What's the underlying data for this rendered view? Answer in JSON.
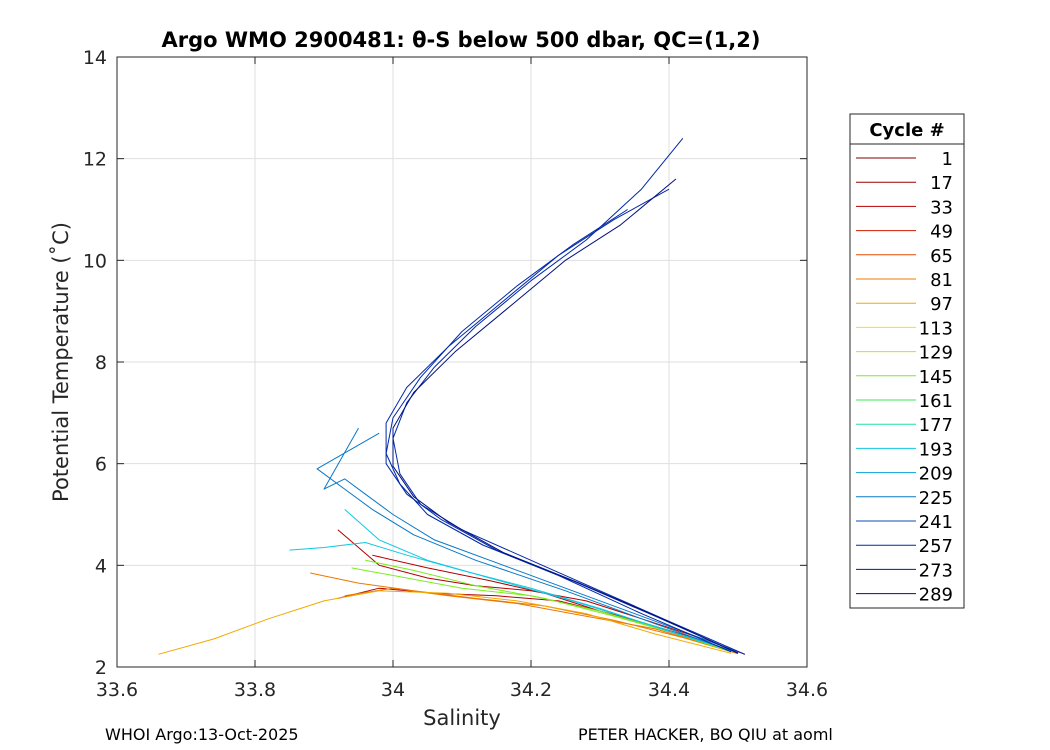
{
  "chart_data": {
    "type": "line",
    "title": "Argo WMO 2900481: θ-S below 500 dbar,  QC=(1,2)",
    "xlabel": "Salinity",
    "ylabel": "Potential Temperature (˚C)",
    "xlim": [
      33.6,
      34.6
    ],
    "ylim": [
      2,
      14
    ],
    "xticks": [
      "33.6",
      "33.8",
      "34",
      "34.2",
      "34.4",
      "34.6"
    ],
    "yticks": [
      "2",
      "4",
      "6",
      "8",
      "10",
      "12",
      "14"
    ],
    "grid": true,
    "legend_title": "Cycle #",
    "legend_position": "right",
    "legend": [
      {
        "label": "1",
        "color": "#800000"
      },
      {
        "label": "17",
        "color": "#9a0000"
      },
      {
        "label": "33",
        "color": "#b40000"
      },
      {
        "label": "49",
        "color": "#d01a00"
      },
      {
        "label": "65",
        "color": "#e04a00"
      },
      {
        "label": "81",
        "color": "#ec7800"
      },
      {
        "label": "97",
        "color": "#f2a800"
      },
      {
        "label": "113",
        "color": "#f2e600"
      },
      {
        "label": "129",
        "color": "#b8f000"
      },
      {
        "label": "145",
        "color": "#78ee20"
      },
      {
        "label": "161",
        "color": "#3ee858"
      },
      {
        "label": "177",
        "color": "#20e0a0"
      },
      {
        "label": "193",
        "color": "#10c8e0"
      },
      {
        "label": "209",
        "color": "#0aa0d8"
      },
      {
        "label": "225",
        "color": "#0878c8"
      },
      {
        "label": "241",
        "color": "#0850b8"
      },
      {
        "label": "257",
        "color": "#0028a8"
      },
      {
        "label": "273",
        "color": "#00189a"
      },
      {
        "label": "289",
        "color": "#001080"
      }
    ],
    "series": [
      {
        "group": "early",
        "color": "#b40000",
        "profiles": [
          {
            "s": [
              34.51,
              34.45,
              34.36,
              34.28,
              34.2,
              34.12,
              34.05,
              33.98,
              33.92
            ],
            "t": [
              2.25,
              2.55,
              2.95,
              3.3,
              3.5,
              3.6,
              3.75,
              4.0,
              4.7
            ]
          },
          {
            "s": [
              34.5,
              34.43,
              34.33,
              34.24,
              34.15,
              34.06,
              33.98,
              33.92
            ],
            "t": [
              2.28,
              2.6,
              3.0,
              3.3,
              3.4,
              3.45,
              3.55,
              3.35
            ]
          },
          {
            "s": [
              34.49,
              34.4,
              34.3,
              34.22,
              34.14,
              34.05,
              33.97
            ],
            "t": [
              2.3,
              2.7,
              3.1,
              3.45,
              3.7,
              3.95,
              4.2
            ]
          }
        ]
      },
      {
        "group": "orange",
        "color": "#ec7800",
        "profiles": [
          {
            "s": [
              34.5,
              34.42,
              34.32,
              34.22,
              34.12,
              34.03,
              33.95,
              33.88
            ],
            "t": [
              2.26,
              2.58,
              2.92,
              3.2,
              3.35,
              3.5,
              3.65,
              3.85
            ]
          },
          {
            "s": [
              34.48,
              34.38,
              34.28,
              34.18,
              34.08,
              34.0,
              33.93
            ],
            "t": [
              2.35,
              2.75,
              3.0,
              3.25,
              3.4,
              3.55,
              3.4
            ]
          }
        ]
      },
      {
        "group": "outlier",
        "color": "#f2a800",
        "profiles": [
          {
            "s": [
              34.49,
              34.38,
              34.28,
              34.18,
              34.08,
              33.98,
              33.9,
              33.82,
              33.74,
              33.66
            ],
            "t": [
              2.27,
              2.65,
              3.05,
              3.3,
              3.45,
              3.5,
              3.3,
              2.95,
              2.55,
              2.25
            ]
          }
        ]
      },
      {
        "group": "mid",
        "color": "#78ee20",
        "profiles": [
          {
            "s": [
              34.5,
              34.42,
              34.32,
              34.22,
              34.12,
              34.03,
              33.96
            ],
            "t": [
              2.28,
              2.62,
              3.0,
              3.35,
              3.6,
              3.9,
              4.1
            ]
          },
          {
            "s": [
              34.49,
              34.4,
              34.3,
              34.2,
              34.1,
              34.02,
              33.94
            ],
            "t": [
              2.3,
              2.7,
              3.1,
              3.4,
              3.55,
              3.75,
              3.95
            ]
          }
        ]
      },
      {
        "group": "cyan",
        "color": "#10c8e0",
        "profiles": [
          {
            "s": [
              34.5,
              34.4,
              34.3,
              34.2,
              34.1,
              34.02,
              33.96,
              33.9,
              33.85
            ],
            "t": [
              2.28,
              2.7,
              3.15,
              3.55,
              3.9,
              4.2,
              4.45,
              4.35,
              4.3
            ]
          },
          {
            "s": [
              34.49,
              34.38,
              34.26,
              34.14,
              34.05,
              33.98,
              33.93
            ],
            "t": [
              2.32,
              2.8,
              3.3,
              3.75,
              4.1,
              4.5,
              5.1
            ]
          }
        ]
      },
      {
        "group": "blue-mid",
        "color": "#0878c8",
        "profiles": [
          {
            "s": [
              34.5,
              34.4,
              34.28,
              34.16,
              34.06,
              34.0,
              33.96,
              33.93,
              33.9,
              33.95
            ],
            "t": [
              2.3,
              2.8,
              3.4,
              4.0,
              4.5,
              5.0,
              5.4,
              5.7,
              5.5,
              6.7
            ]
          },
          {
            "s": [
              34.49,
              34.38,
              34.25,
              34.12,
              34.03,
              33.97,
              33.93,
              33.89,
              33.98
            ],
            "t": [
              2.32,
              2.85,
              3.5,
              4.1,
              4.6,
              5.1,
              5.5,
              5.9,
              6.6
            ]
          }
        ]
      },
      {
        "group": "late",
        "color": "#0028a8",
        "profiles": [
          {
            "s": [
              34.51,
              34.4,
              34.3,
              34.2,
              34.1,
              34.04,
              34.01,
              34.0,
              34.02,
              34.06,
              34.12,
              34.2,
              34.28,
              34.36,
              34.42
            ],
            "t": [
              2.25,
              2.9,
              3.5,
              4.1,
              4.7,
              5.2,
              5.8,
              6.5,
              7.2,
              7.9,
              8.7,
              9.6,
              10.4,
              11.4,
              12.4
            ]
          },
          {
            "s": [
              34.5,
              34.38,
              34.26,
              34.15,
              34.07,
              34.02,
              33.99,
              33.99,
              34.02,
              34.08,
              34.16,
              34.24,
              34.32,
              34.4
            ],
            "t": [
              2.28,
              3.0,
              3.7,
              4.3,
              4.9,
              5.4,
              6.0,
              6.8,
              7.5,
              8.3,
              9.2,
              10.1,
              10.8,
              11.4
            ]
          },
          {
            "s": [
              34.49,
              34.36,
              34.24,
              34.13,
              34.05,
              34.01,
              33.99,
              34.0,
              34.04,
              34.1,
              34.18,
              34.26,
              34.34
            ],
            "t": [
              2.3,
              3.05,
              3.8,
              4.4,
              5.0,
              5.6,
              6.2,
              6.9,
              7.7,
              8.6,
              9.5,
              10.3,
              11.0
            ]
          }
        ]
      },
      {
        "group": "latest",
        "color": "#001080",
        "profiles": [
          {
            "s": [
              34.5,
              34.39,
              34.27,
              34.16,
              34.08,
              34.03,
              34.0,
              34.0,
              34.03,
              34.09,
              34.17,
              34.25,
              34.33,
              34.41
            ],
            "t": [
              2.27,
              2.95,
              3.65,
              4.25,
              4.85,
              5.35,
              5.95,
              6.7,
              7.4,
              8.2,
              9.1,
              10.0,
              10.7,
              11.6
            ]
          }
        ]
      }
    ]
  },
  "footer": {
    "left": "WHOI Argo:13-Oct-2025",
    "right": "PETER HACKER, BO QIU at aoml"
  }
}
